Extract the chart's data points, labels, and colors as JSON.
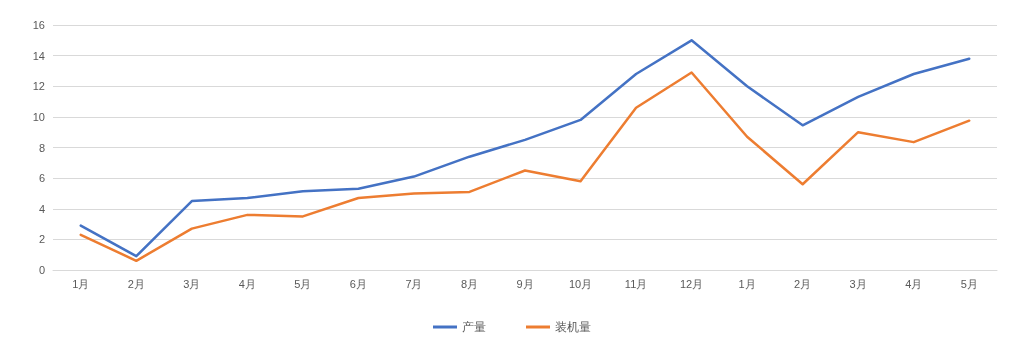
{
  "chart_data": {
    "type": "line",
    "categories": [
      "1月",
      "2月",
      "3月",
      "4月",
      "5月",
      "6月",
      "7月",
      "8月",
      "9月",
      "10月",
      "11月",
      "12月",
      "1月",
      "2月",
      "3月",
      "4月",
      "5月"
    ],
    "series": [
      {
        "name": "产量",
        "color": "#4472c4",
        "values": [
          2.9,
          0.9,
          4.5,
          4.7,
          5.15,
          5.3,
          6.1,
          7.4,
          8.5,
          9.8,
          12.8,
          15.0,
          12.0,
          9.45,
          11.3,
          12.8,
          13.8
        ]
      },
      {
        "name": "装机量",
        "color": "#ed7d31",
        "values": [
          2.3,
          0.6,
          2.7,
          3.6,
          3.5,
          4.7,
          5.0,
          5.1,
          6.5,
          5.8,
          10.6,
          12.9,
          8.7,
          5.6,
          9.0,
          8.35,
          9.75
        ]
      }
    ],
    "ylim": [
      0,
      16
    ],
    "yticks": [
      0,
      2,
      4,
      6,
      8,
      10,
      12,
      14,
      16
    ],
    "grid": "y",
    "legend": "bottom",
    "marker": "none",
    "line_style": "solid"
  }
}
